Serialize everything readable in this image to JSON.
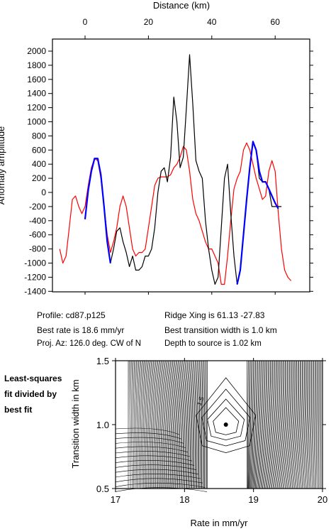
{
  "chart_data": [
    {
      "type": "line",
      "title": "",
      "xlabel": "Distance (km)",
      "ylabel": "Anomaly amplitude",
      "xlim": [
        -8,
        67
      ],
      "ylim": [
        -1400,
        2200
      ],
      "x_ticks": [
        0,
        20,
        40,
        60
      ],
      "y_ticks": [
        -1400,
        -1200,
        -1000,
        -800,
        -600,
        -400,
        -200,
        0,
        200,
        400,
        600,
        800,
        1000,
        1200,
        1400,
        1600,
        1800,
        2000
      ],
      "series": [
        {
          "color": "#000000",
          "x": [
            0,
            1,
            2,
            3,
            4,
            5,
            6,
            7,
            8,
            9,
            10,
            11,
            12,
            13,
            14,
            15,
            16,
            17,
            18,
            19,
            20,
            21,
            22,
            23,
            24,
            25,
            26,
            27,
            28,
            29,
            30,
            31,
            32,
            33,
            34,
            35,
            36,
            37,
            38,
            39,
            40,
            41,
            42,
            43,
            44,
            45,
            46,
            47,
            48,
            49,
            50,
            51,
            52,
            53,
            54,
            55,
            56,
            57,
            58,
            59,
            60,
            61,
            62
          ],
          "y": [
            -380,
            30,
            300,
            480,
            480,
            250,
            -200,
            -700,
            -1000,
            -800,
            -550,
            -500,
            -700,
            -850,
            -1050,
            -900,
            -1100,
            -1100,
            -1050,
            -900,
            -900,
            -800,
            -500,
            0,
            300,
            350,
            150,
            500,
            1350,
            1000,
            350,
            500,
            1200,
            1950,
            1250,
            450,
            300,
            200,
            -400,
            -800,
            -1100,
            -1300,
            -1200,
            -500,
            200,
            400,
            -300,
            -900,
            -1300,
            -1100,
            -600,
            -100,
            350,
            720,
            600,
            200,
            150,
            150,
            50,
            -200,
            -200,
            -200,
            -200
          ]
        },
        {
          "color": "#0000ff",
          "x": [
            0,
            1,
            2,
            3,
            4,
            5,
            6,
            7,
            8,
            48,
            49,
            50,
            51,
            52,
            53,
            54,
            55,
            56,
            57,
            58,
            59,
            60,
            61
          ],
          "y": [
            -380,
            30,
            300,
            480,
            480,
            250,
            -200,
            -700,
            -1000,
            -1300,
            -1100,
            -600,
            -100,
            350,
            720,
            600,
            300,
            150,
            150,
            50,
            -50,
            -150,
            -230
          ]
        },
        {
          "color": "#ff0000",
          "x": [
            -8,
            -7,
            -6,
            -5,
            -4,
            -3,
            -2,
            -1,
            0,
            1,
            2,
            3,
            4,
            5,
            6,
            7,
            8,
            9,
            10,
            11,
            12,
            13,
            14,
            15,
            16,
            17,
            18,
            19,
            20,
            21,
            22,
            23,
            24,
            25,
            26,
            27,
            28,
            29,
            30,
            31,
            32,
            33,
            34,
            35,
            36,
            37,
            38,
            39,
            40,
            41,
            42,
            43,
            44,
            45,
            46,
            47,
            48,
            49,
            50,
            51,
            52,
            53,
            54,
            55,
            56,
            57,
            58,
            59,
            60,
            61,
            62,
            63,
            64,
            65
          ],
          "y": [
            -800,
            -1000,
            -900,
            -500,
            -100,
            -50,
            -200,
            -300,
            -200,
            100,
            350,
            480,
            450,
            200,
            -200,
            -600,
            -850,
            -700,
            -500,
            -200,
            -50,
            -200,
            -500,
            -800,
            -900,
            -850,
            -850,
            -800,
            -500,
            -200,
            100,
            200,
            220,
            220,
            220,
            250,
            350,
            400,
            500,
            650,
            600,
            300,
            -100,
            -300,
            -400,
            -550,
            -700,
            -800,
            -800,
            -900,
            -1000,
            -1300,
            -1300,
            -900,
            -400,
            50,
            200,
            300,
            600,
            700,
            600,
            400,
            200,
            50,
            -100,
            -50,
            300,
            450,
            300,
            -300,
            -800,
            -1100,
            -1200,
            -1250
          ]
        }
      ]
    },
    {
      "type": "contour",
      "title": "",
      "xlabel": "Rate in mm/yr",
      "ylabel": "Transition width in km",
      "xlim": [
        17,
        20
      ],
      "ylim": [
        0.5,
        1.5
      ],
      "x_ticks": [
        17,
        18,
        19,
        20
      ],
      "y_ticks": [
        0.5,
        1.0,
        1.5
      ],
      "contour_label": "1.5",
      "best_fit": {
        "x": 18.6,
        "y": 1.0
      }
    }
  ],
  "ticks": {
    "top_x": [
      "0",
      "20",
      "40",
      "60"
    ],
    "left_y": [
      "-1400",
      "-1200",
      "-1000",
      "-800",
      "-600",
      "-400",
      "-200",
      "0",
      "200",
      "400",
      "600",
      "800",
      "1000",
      "1200",
      "1400",
      "1600",
      "1800",
      "2000"
    ],
    "bottom_x": [
      "17",
      "18",
      "19",
      "20"
    ],
    "bottom_y": [
      "0.5",
      "1.0",
      "1.5"
    ]
  },
  "info": {
    "profile": "Profile: cd87.p125",
    "ridge_xing": "Ridge Xing is 61.13 -27.83",
    "best_rate": "Best rate is 18.6 mm/yr",
    "best_width": "Best transition width is 1.0 km",
    "proj_az": "Proj. Az: 126.0 deg. CW of N",
    "depth": "Depth to source is   1.02 km"
  },
  "side_note": [
    "Least-squares",
    "fit divided by",
    "best fit"
  ]
}
